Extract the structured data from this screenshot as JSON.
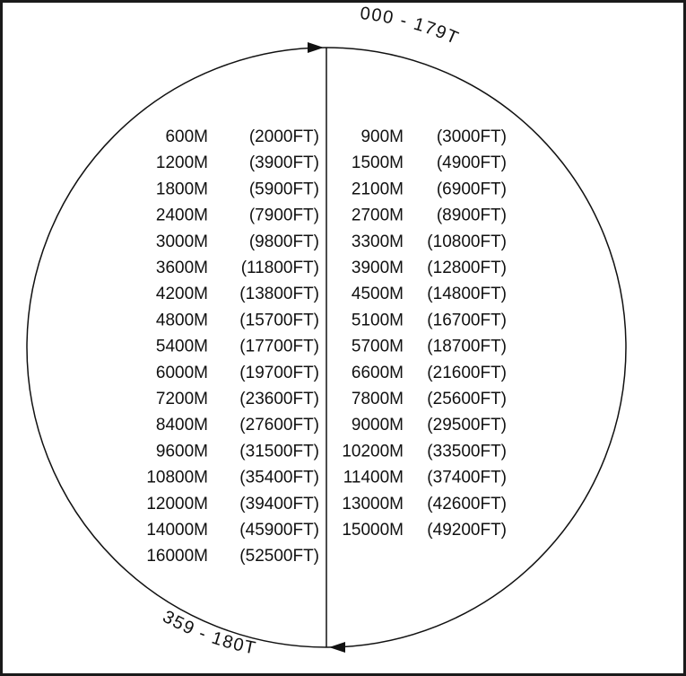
{
  "diagram": {
    "type": "semicircular cruising level diagram",
    "top_arc_label": "000 - 179T",
    "bottom_arc_label": "359 - 180T",
    "colors": {
      "line": "#111111",
      "background": "#ffffff"
    },
    "left_column": [
      {
        "meters": "600M",
        "feet": "(2000FT)"
      },
      {
        "meters": "1200M",
        "feet": "(3900FT)"
      },
      {
        "meters": "1800M",
        "feet": "(5900FT)"
      },
      {
        "meters": "2400M",
        "feet": "(7900FT)"
      },
      {
        "meters": "3000M",
        "feet": "(9800FT)"
      },
      {
        "meters": "3600M",
        "feet": "(11800FT)"
      },
      {
        "meters": "4200M",
        "feet": "(13800FT)"
      },
      {
        "meters": "4800M",
        "feet": "(15700FT)"
      },
      {
        "meters": "5400M",
        "feet": "(17700FT)"
      },
      {
        "meters": "6000M",
        "feet": "(19700FT)"
      },
      {
        "meters": "7200M",
        "feet": "(23600FT)"
      },
      {
        "meters": "8400M",
        "feet": "(27600FT)"
      },
      {
        "meters": "9600M",
        "feet": "(31500FT)"
      },
      {
        "meters": "10800M",
        "feet": "(35400FT)"
      },
      {
        "meters": "12000M",
        "feet": "(39400FT)"
      },
      {
        "meters": "14000M",
        "feet": "(45900FT)"
      },
      {
        "meters": "16000M",
        "feet": "(52500FT)"
      }
    ],
    "right_column": [
      {
        "meters": "900M",
        "feet": "(3000FT)"
      },
      {
        "meters": "1500M",
        "feet": "(4900FT)"
      },
      {
        "meters": "2100M",
        "feet": "(6900FT)"
      },
      {
        "meters": "2700M",
        "feet": "(8900FT)"
      },
      {
        "meters": "3300M",
        "feet": "(10800FT)"
      },
      {
        "meters": "3900M",
        "feet": "(12800FT)"
      },
      {
        "meters": "4500M",
        "feet": "(14800FT)"
      },
      {
        "meters": "5100M",
        "feet": "(16700FT)"
      },
      {
        "meters": "5700M",
        "feet": "(18700FT)"
      },
      {
        "meters": "6600M",
        "feet": "(21600FT)"
      },
      {
        "meters": "7800M",
        "feet": "(25600FT)"
      },
      {
        "meters": "9000M",
        "feet": "(29500FT)"
      },
      {
        "meters": "10200M",
        "feet": "(33500FT)"
      },
      {
        "meters": "11400M",
        "feet": "(37400FT)"
      },
      {
        "meters": "13000M",
        "feet": "(42600FT)"
      },
      {
        "meters": "15000M",
        "feet": "(49200FT)"
      }
    ]
  }
}
